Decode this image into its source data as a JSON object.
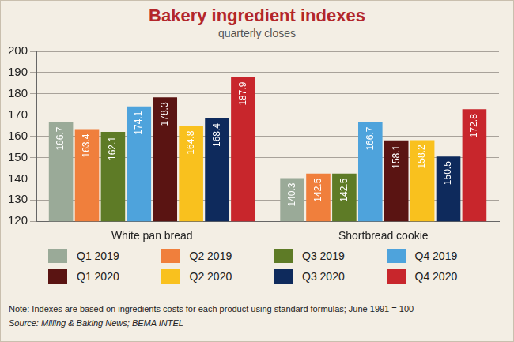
{
  "chart_data": {
    "type": "bar",
    "title": "Bakery ingredient indexes",
    "subtitle": "quarterly closes",
    "categories": [
      "White pan bread",
      "Shortbread cookie"
    ],
    "series": [
      {
        "name": "Q1 2019",
        "color": "#9aaa98",
        "values": [
          166.7,
          140.3
        ]
      },
      {
        "name": "Q2 2019",
        "color": "#f07f3c",
        "values": [
          163.4,
          142.5
        ]
      },
      {
        "name": "Q3 2019",
        "color": "#5e7b26",
        "values": [
          162.1,
          142.5
        ]
      },
      {
        "name": "Q4 2019",
        "color": "#4ea3dc",
        "values": [
          174.1,
          166.7
        ]
      },
      {
        "name": "Q1 2020",
        "color": "#5a1412",
        "values": [
          178.3,
          158.1
        ]
      },
      {
        "name": "Q2 2020",
        "color": "#f9c11e",
        "values": [
          164.8,
          158.2
        ]
      },
      {
        "name": "Q3 2020",
        "color": "#0e2a5c",
        "values": [
          168.4,
          150.5
        ]
      },
      {
        "name": "Q4 2020",
        "color": "#c8262c",
        "values": [
          187.9,
          172.8
        ]
      }
    ],
    "ylim": [
      120,
      200
    ],
    "yticks": [
      120,
      130,
      140,
      150,
      160,
      170,
      180,
      190,
      200
    ],
    "grid": true,
    "legend": "bottom",
    "data_labels": true,
    "note": "Note: Indexes are based on ingredients costs for each product using standard formulas; June 1991 = 100",
    "source": "Source: Milling & Baking News; BEMA INTEL"
  }
}
